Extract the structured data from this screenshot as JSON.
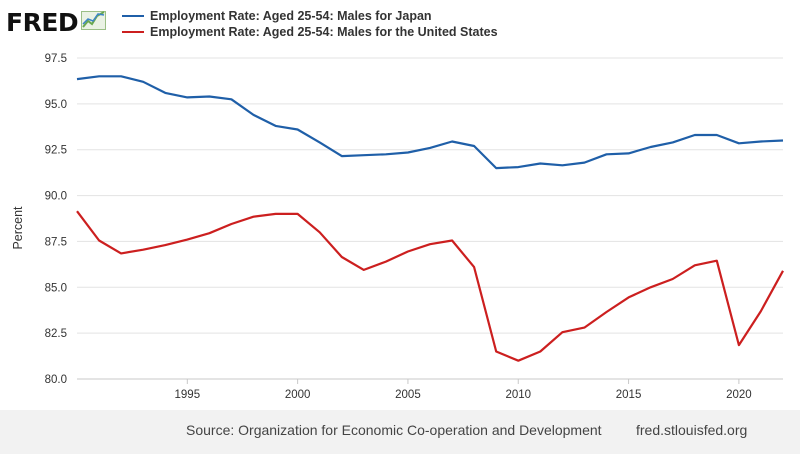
{
  "header": {
    "logo_text": "FRED",
    "logo_icon": "fred-chart-icon"
  },
  "colors": {
    "japan": "#1f5fa8",
    "usa": "#cc1f1f",
    "grid": "#e3e3e3",
    "footer_bg": "#f2f2f2"
  },
  "footer": {
    "source": "Source: Organization for Economic Co-operation and Development",
    "site": "fred.stlouisfed.org"
  },
  "chart_data": {
    "type": "line",
    "title": "",
    "xlabel": "",
    "ylabel": "Percent",
    "ylim": [
      80.0,
      97.5
    ],
    "xlim": [
      1990,
      2022
    ],
    "yticks": [
      "80.0",
      "82.5",
      "85.0",
      "87.5",
      "90.0",
      "92.5",
      "95.0",
      "97.5"
    ],
    "xticks": [
      "1995",
      "2000",
      "2005",
      "2010",
      "2015",
      "2020"
    ],
    "grid": true,
    "legend_position": "top-left",
    "x": [
      1990,
      1991,
      1992,
      1993,
      1994,
      1995,
      1996,
      1997,
      1998,
      1999,
      2000,
      2001,
      2002,
      2003,
      2004,
      2005,
      2006,
      2007,
      2008,
      2009,
      2010,
      2011,
      2012,
      2013,
      2014,
      2015,
      2016,
      2017,
      2018,
      2019,
      2020,
      2021,
      2022
    ],
    "series": [
      {
        "name": "Employment Rate: Aged 25-54: Males for Japan",
        "color": "#1f5fa8",
        "values": [
          96.35,
          96.5,
          96.5,
          96.2,
          95.6,
          95.35,
          95.4,
          95.25,
          94.4,
          93.8,
          93.6,
          92.9,
          92.15,
          92.2,
          92.25,
          92.35,
          92.6,
          92.95,
          92.7,
          91.5,
          91.55,
          91.75,
          91.65,
          91.8,
          92.25,
          92.3,
          92.65,
          92.9,
          93.3,
          93.3,
          92.85,
          92.95,
          93.0
        ]
      },
      {
        "name": "Employment Rate: Aged 25-54: Males for the United States",
        "color": "#cc1f1f",
        "values": [
          89.15,
          87.55,
          86.85,
          87.05,
          87.3,
          87.6,
          87.95,
          88.45,
          88.85,
          89.0,
          89.0,
          88.0,
          86.65,
          85.95,
          86.4,
          86.95,
          87.35,
          87.55,
          86.1,
          81.5,
          81.0,
          81.5,
          82.55,
          82.8,
          83.65,
          84.45,
          85.0,
          85.45,
          86.2,
          86.45,
          81.85,
          83.7,
          85.9
        ]
      }
    ]
  }
}
